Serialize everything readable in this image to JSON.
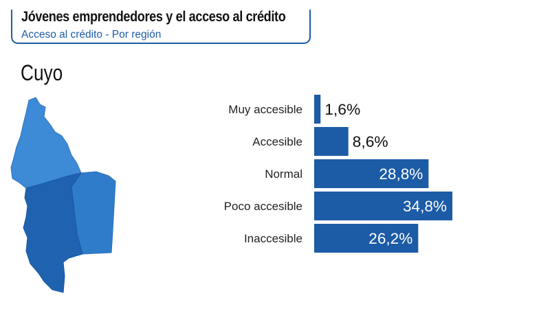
{
  "header": {
    "title": "Jóvenes emprendedores y el acceso al crédito",
    "subtitle": "Acceso al crédito - Por región"
  },
  "region_name": "Cuyo",
  "colors": {
    "accent": "#1c5ba6",
    "bar": "#1c5ba6",
    "map_light": "#3d8ad6",
    "map_dark": "#1c5ba6"
  },
  "chart_data": {
    "type": "bar",
    "orientation": "horizontal",
    "categories": [
      "Muy accesible",
      "Accesible",
      "Normal",
      "Poco accesible",
      "Inaccesible"
    ],
    "values": [
      1.6,
      8.6,
      28.8,
      34.8,
      26.2
    ],
    "value_labels": [
      "1,6%",
      "8,6%",
      "28,8%",
      "34,8%",
      "26,2%"
    ],
    "title": "Cuyo",
    "xlabel": "",
    "ylabel": "",
    "xlim": [
      0,
      34.8
    ],
    "grid": false,
    "legend": "none"
  }
}
